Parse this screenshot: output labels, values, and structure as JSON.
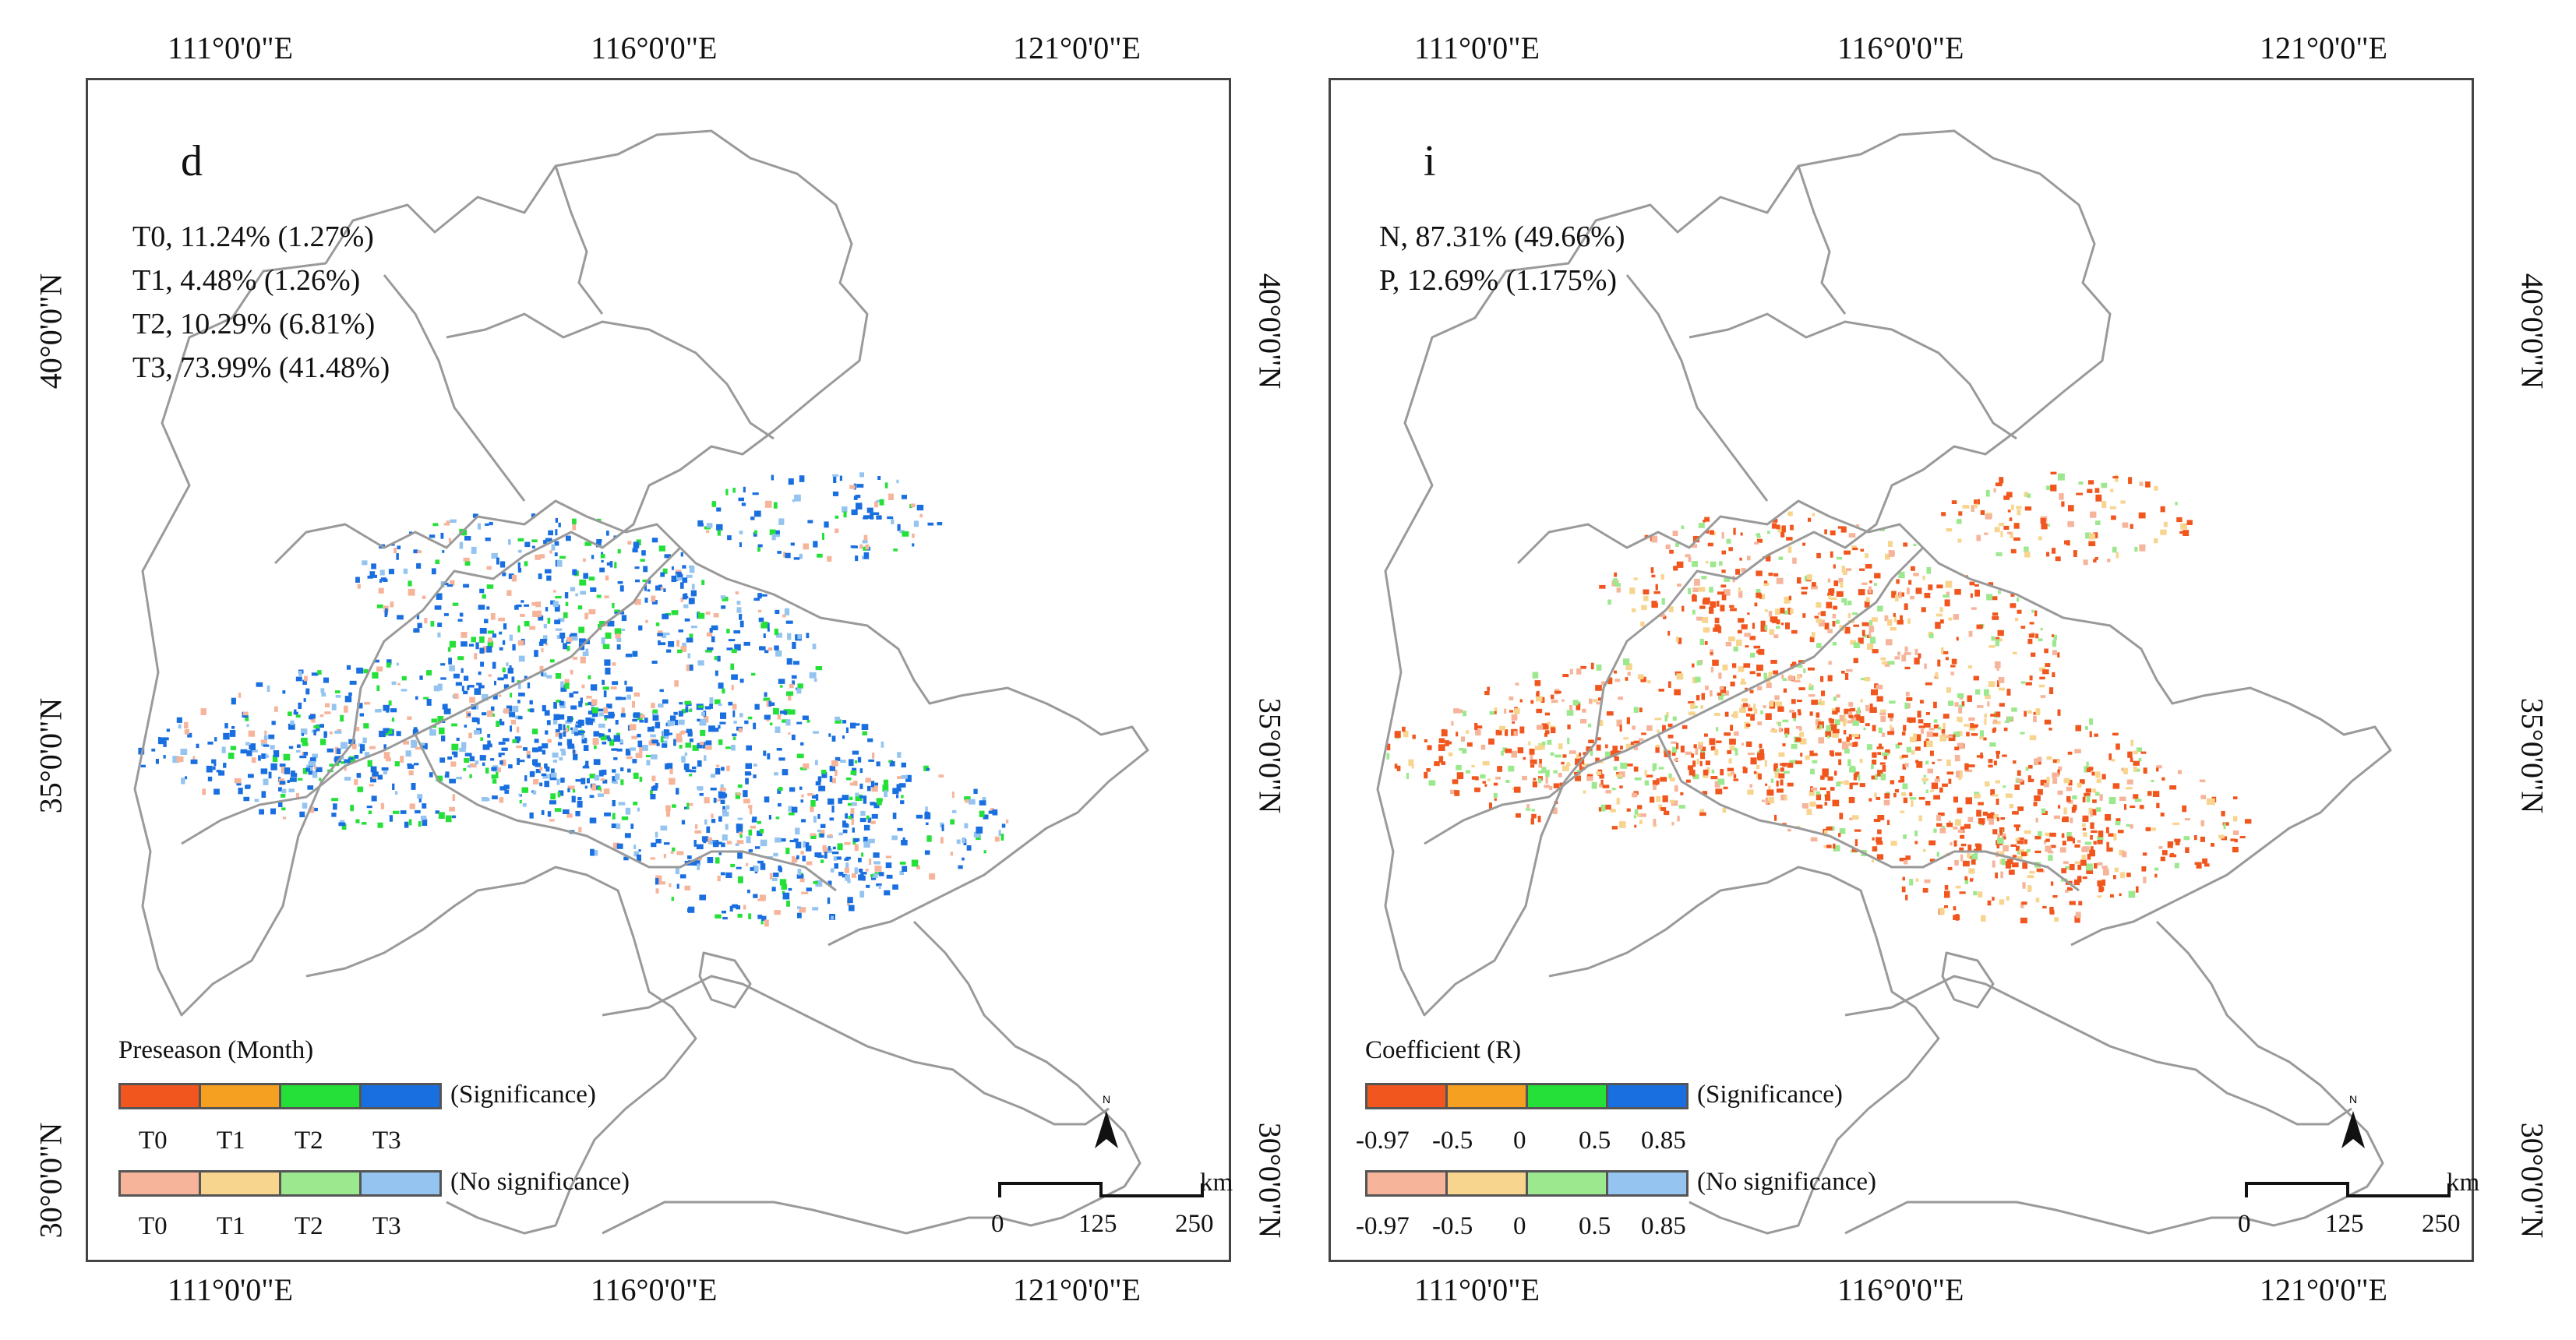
{
  "axes": {
    "lon_labels": [
      "111°0'0\"E",
      "116°0'0\"E",
      "121°0'0\"E"
    ],
    "lat_labels": [
      "40°0'0\"N",
      "35°0'0\"N",
      "30°0'0\"N"
    ]
  },
  "panels": [
    {
      "letter": "d",
      "stats": [
        "T0, 11.24% (1.27%)",
        "T1, 4.48% (1.26%)",
        "T2, 10.29% (6.81%)",
        "T3, 73.99% (41.48%)"
      ],
      "legend": {
        "title": "Preseason (Month)",
        "sig_label": "(Significance)",
        "nosig_label": "(No significance)",
        "ticks": [
          "T0",
          "T1",
          "T2",
          "T3"
        ],
        "sig_colors": [
          "#f0561d",
          "#f5a020",
          "#26e03a",
          "#1a6fe0"
        ],
        "nosig_colors": [
          "#f6b49a",
          "#f7d58e",
          "#9ce88e",
          "#94c4ef"
        ]
      },
      "pixel_palette": [
        "#1a6fe0",
        "#1a6fe0",
        "#1a6fe0",
        "#26e03a",
        "#94c4ef",
        "#f6b49a"
      ]
    },
    {
      "letter": "i",
      "stats": [
        "N, 87.31% (49.66%)",
        "P, 12.69% (1.175%)"
      ],
      "legend": {
        "title": "Coefficient (R)",
        "sig_label": "(Significance)",
        "nosig_label": "(No significance)",
        "ticks": [
          "-0.97",
          "-0.5",
          "0",
          "0.5",
          "0.85"
        ],
        "sig_colors": [
          "#f0561d",
          "#f5a020",
          "#26e03a",
          "#1a6fe0"
        ],
        "nosig_colors": [
          "#f6b49a",
          "#f7d58e",
          "#9ce88e",
          "#94c4ef"
        ]
      },
      "pixel_palette": [
        "#f0561d",
        "#f0561d",
        "#f0561d",
        "#f6b49a",
        "#f7d58e",
        "#9ce88e"
      ]
    }
  ],
  "scale": {
    "labels": [
      "0",
      "125",
      "250"
    ],
    "unit": "km"
  },
  "north_label": "N",
  "colors": {
    "boundary": "#9a9a9a",
    "frame": "#444444"
  }
}
